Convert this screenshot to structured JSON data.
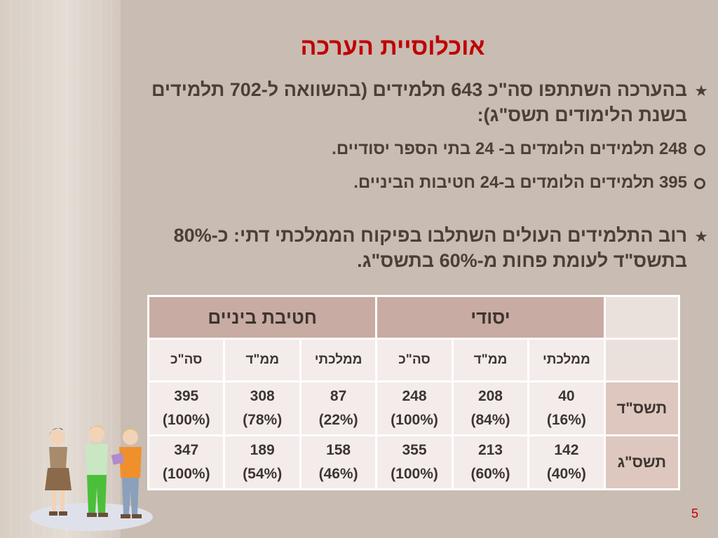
{
  "title": "אוכלוסיית הערכה",
  "bullets": {
    "first": "בהערכה השתתפו סה\"כ 643 תלמידים (בהשוואה ל-702 תלמידים בשנת הלימודים תשס\"ג):",
    "sub_items": [
      "248 תלמידים הלומדים ב- 24 בתי הספר יסודיים.",
      "395 תלמידים הלומדים ב-24 חטיבות הביניים."
    ],
    "second": "רוב התלמידים העולים השתלבו בפיקוח הממלכתי דתי: כ-80% בתשס\"ד לעומת פחות מ-60% בתשס\"ג."
  },
  "table": {
    "group_headers": [
      "יסודי",
      "חטיבת ביניים"
    ],
    "column_headers": [
      "ממלכתי",
      "ממ\"ד",
      "סה\"כ",
      "ממלכתי",
      "ממ\"ד",
      "סה\"כ"
    ],
    "rows": [
      {
        "label": "תשס\"ד",
        "cells": [
          {
            "n": "40",
            "p": "(16%)"
          },
          {
            "n": "208",
            "p": "(84%)"
          },
          {
            "n": "248",
            "p": "(100%)"
          },
          {
            "n": "87",
            "p": "(22%)"
          },
          {
            "n": "308",
            "p": "(78%)"
          },
          {
            "n": "395",
            "p": "(100%)"
          }
        ]
      },
      {
        "label": "תשס\"ג",
        "cells": [
          {
            "n": "142",
            "p": "(40%)"
          },
          {
            "n": "213",
            "p": "(60%)"
          },
          {
            "n": "355",
            "p": "(100%)"
          },
          {
            "n": "158",
            "p": "(46%)"
          },
          {
            "n": "189",
            "p": "(54%)"
          },
          {
            "n": "347",
            "p": "(100%)"
          }
        ]
      }
    ]
  },
  "page_number": "5",
  "colors": {
    "background": "#c9bcb2",
    "title": "#c00000",
    "header_fill": "#c8aba2",
    "cell_fill": "#f3ecea",
    "row_label_text": "#3b4fb0"
  },
  "icons": [
    "star-bullet-icon",
    "ring-bullet-icon",
    "children-clipart"
  ]
}
